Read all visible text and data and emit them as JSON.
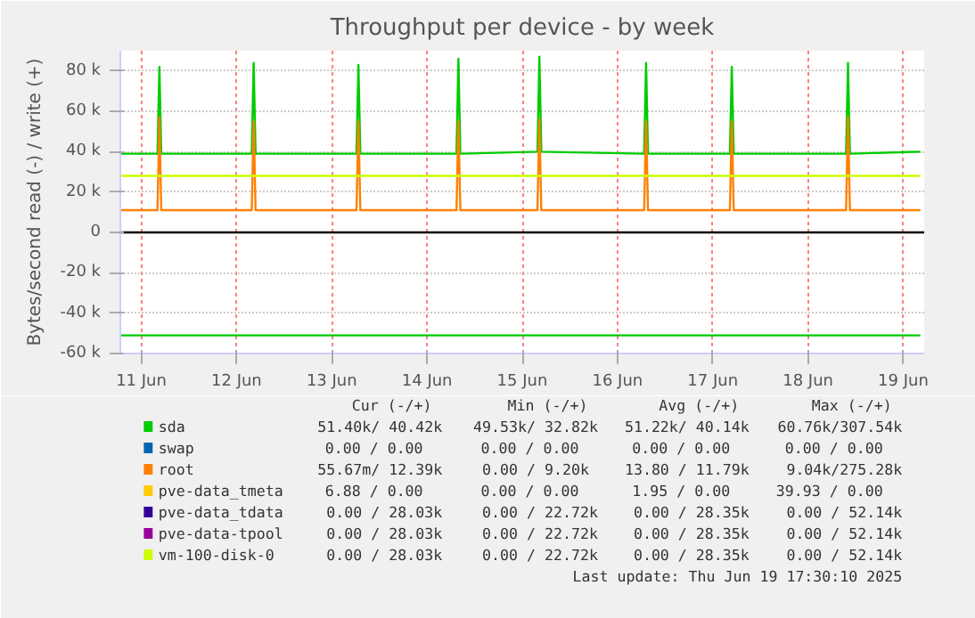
{
  "chart_data": {
    "type": "line",
    "title": "Throughput per device - by week",
    "ylabel": "Bytes/second read (-) / write (+)",
    "x": [
      "2025-06-10T18:43",
      "2025-06-11T04:05",
      "2025-06-11T04:34",
      "2025-06-11T05:02",
      "2025-06-12T03:50",
      "2025-06-12T04:19",
      "2025-06-12T04:48",
      "2025-06-13T06:14",
      "2025-06-13T06:43",
      "2025-06-13T07:12",
      "2025-06-14T07:26",
      "2025-06-14T07:55",
      "2025-06-14T08:24",
      "2025-06-15T03:50",
      "2025-06-15T04:19",
      "2025-06-15T04:48",
      "2025-06-16T06:43",
      "2025-06-16T07:12",
      "2025-06-16T07:41",
      "2025-06-17T04:19",
      "2025-06-17T04:48",
      "2025-06-17T05:17",
      "2025-06-18T09:36",
      "2025-06-18T10:05",
      "2025-06-18T10:34",
      "2025-06-19T04:19"
    ],
    "xlim": [
      "2025-06-10T18:43",
      "2025-06-19T05:17"
    ],
    "xticks": [
      {
        "value": "2025-06-11",
        "label": "11 Jun"
      },
      {
        "value": "2025-06-12",
        "label": "12 Jun"
      },
      {
        "value": "2025-06-13",
        "label": "13 Jun"
      },
      {
        "value": "2025-06-14",
        "label": "14 Jun"
      },
      {
        "value": "2025-06-15",
        "label": "15 Jun"
      },
      {
        "value": "2025-06-16",
        "label": "16 Jun"
      },
      {
        "value": "2025-06-17",
        "label": "17 Jun"
      },
      {
        "value": "2025-06-18",
        "label": "18 Jun"
      },
      {
        "value": "2025-06-19",
        "label": "19 Jun"
      }
    ],
    "ylim": [
      -60000,
      90000
    ],
    "yticks": [
      {
        "value": -60000,
        "label": "-60 k"
      },
      {
        "value": -40000,
        "label": "-40 k"
      },
      {
        "value": -20000,
        "label": "-20 k"
      },
      0,
      {
        "value": 20000,
        "label": "20 k"
      },
      {
        "value": 40000,
        "label": "40 k"
      },
      {
        "value": 60000,
        "label": "60 k"
      },
      {
        "value": 80000,
        "label": "80 k"
      }
    ],
    "grid": true,
    "legend": "bottom",
    "line_style": "solid",
    "ref_lines": [
      {
        "axis": "y",
        "value": 0,
        "color": "#000000"
      }
    ],
    "series": [
      {
        "name": "sda",
        "color": "#00cc00",
        "values": [
          39000,
          39000,
          82000,
          39000,
          39000,
          84000,
          39000,
          39000,
          83000,
          39000,
          39000,
          86000,
          39000,
          40000,
          87000,
          40000,
          39000,
          84000,
          39000,
          39000,
          82000,
          39000,
          39000,
          84000,
          39000,
          40000
        ]
      },
      {
        "color": "#00cc00",
        "values": [
          -51000,
          -51000,
          -51000,
          -51000,
          -51000,
          -51000,
          -51000,
          -51000,
          -51000,
          -51000,
          -51000,
          -51000,
          -51000,
          -51000,
          -51000,
          -51000,
          -51000,
          -51000,
          -51000,
          -51000,
          -51000,
          -51000,
          -51000,
          -51000,
          -51000,
          -51000
        ]
      },
      {
        "name": "swap",
        "color": "#0066b3",
        "values": [
          null,
          null,
          null,
          null,
          null,
          null,
          null,
          null,
          null,
          null,
          null,
          null,
          null,
          null,
          null,
          null,
          null,
          null,
          null,
          null,
          null,
          null,
          null,
          null,
          null,
          null
        ]
      },
      {
        "name": "root",
        "color": "#ff8000",
        "values": [
          11000,
          11000,
          57000,
          11000,
          11000,
          55000,
          11000,
          11000,
          55000,
          11000,
          11000,
          55000,
          11000,
          11000,
          56000,
          11000,
          11000,
          55000,
          11000,
          11000,
          55000,
          11000,
          11000,
          57000,
          11000,
          11000
        ]
      },
      {
        "name": "pve-data_tmeta",
        "color": "#ffcc00",
        "values": [
          null,
          null,
          null,
          null,
          null,
          null,
          null,
          null,
          null,
          null,
          null,
          null,
          null,
          null,
          null,
          null,
          null,
          null,
          null,
          null,
          null,
          null,
          null,
          null,
          null,
          null
        ]
      },
      {
        "name": "pve-data_tdata",
        "color": "#330099",
        "values": [
          null,
          null,
          null,
          null,
          null,
          null,
          null,
          null,
          null,
          null,
          null,
          null,
          null,
          null,
          null,
          null,
          null,
          null,
          null,
          null,
          null,
          null,
          null,
          null,
          null,
          null
        ]
      },
      {
        "name": "pve-data-tpool",
        "color": "#990099",
        "values": [
          null,
          null,
          null,
          null,
          null,
          null,
          null,
          null,
          null,
          null,
          null,
          null,
          null,
          null,
          null,
          null,
          null,
          null,
          null,
          null,
          null,
          null,
          null,
          null,
          null,
          null
        ]
      },
      {
        "name": "vm-100-disk-0",
        "color": "#ccff00",
        "values": [
          28000,
          28000,
          28000,
          28000,
          28000,
          28000,
          28000,
          28000,
          28000,
          28000,
          28000,
          28000,
          28000,
          28000,
          28000,
          28000,
          28000,
          28000,
          28000,
          28000,
          28000,
          28000,
          28000,
          28000,
          28000,
          28000
        ]
      }
    ],
    "annotations": [
      "Cur (-/+)",
      "Min (-/+)",
      "Avg (-/+)",
      "Max (-/+)",
      "51.40k/ 40.42k",
      "49.53k/ 32.82k",
      "51.22k/ 40.14k",
      "60.76k/307.54k",
      "0.00 /  0.00",
      "0.00 /  0.00",
      "0.00 /  0.00",
      "0.00 /  0.00",
      "55.67m/ 12.39k",
      "0.00 /  9.20k",
      "13.80 / 11.79k",
      "9.04k/275.28k",
      "6.88 /  0.00",
      "0.00 /  0.00",
      "1.95 /  0.00",
      "39.93 /  0.00",
      "0.00 / 28.03k",
      "0.00 / 22.72k",
      "0.00 / 28.35k",
      "0.00 / 52.14k",
      "0.00 / 28.03k",
      "0.00 / 22.72k",
      "0.00 / 28.35k",
      "0.00 / 52.14k",
      "0.00 / 28.03k",
      "0.00 / 22.72k",
      "0.00 / 28.35k",
      "0.00 / 52.14k",
      "Last update: Thu Jun 19 17:30:10 2025"
    ]
  }
}
